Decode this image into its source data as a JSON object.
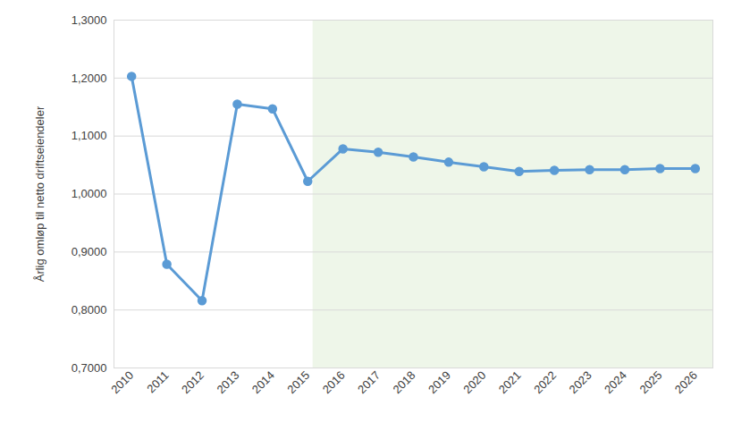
{
  "chart_data": {
    "type": "line",
    "y_label": "Årlig omløp til netto driftseiendeler",
    "x": [
      2010,
      2011,
      2012,
      2013,
      2014,
      2015,
      2016,
      2017,
      2018,
      2019,
      2020,
      2021,
      2022,
      2023,
      2024,
      2025,
      2026
    ],
    "values": [
      1.203,
      0.879,
      0.816,
      1.155,
      1.147,
      1.022,
      1.078,
      1.072,
      1.064,
      1.055,
      1.047,
      1.039,
      1.041,
      1.042,
      1.042,
      1.044,
      1.044
    ],
    "color": "#5b9bd5",
    "marker": "circle",
    "xlim": [
      2009.5,
      2026.5
    ],
    "xticks": [
      2010,
      2011,
      2012,
      2013,
      2014,
      2015,
      2016,
      2017,
      2018,
      2019,
      2020,
      2021,
      2022,
      2023,
      2024,
      2025,
      2026
    ],
    "ylim": [
      0.7,
      1.3
    ],
    "yticks": [
      {
        "value": 0.7,
        "label": "0,7000"
      },
      {
        "value": 0.8,
        "label": "0,8000"
      },
      {
        "value": 0.9,
        "label": "0,9000"
      },
      {
        "value": 1.0,
        "label": "1,0000"
      },
      {
        "value": 1.1,
        "label": "1,1000"
      },
      {
        "value": 1.2,
        "label": "1,2000"
      },
      {
        "value": 1.3,
        "label": "1,3000"
      }
    ],
    "forecast_x": [
      2015.15,
      2026.5
    ],
    "grid": true
  }
}
